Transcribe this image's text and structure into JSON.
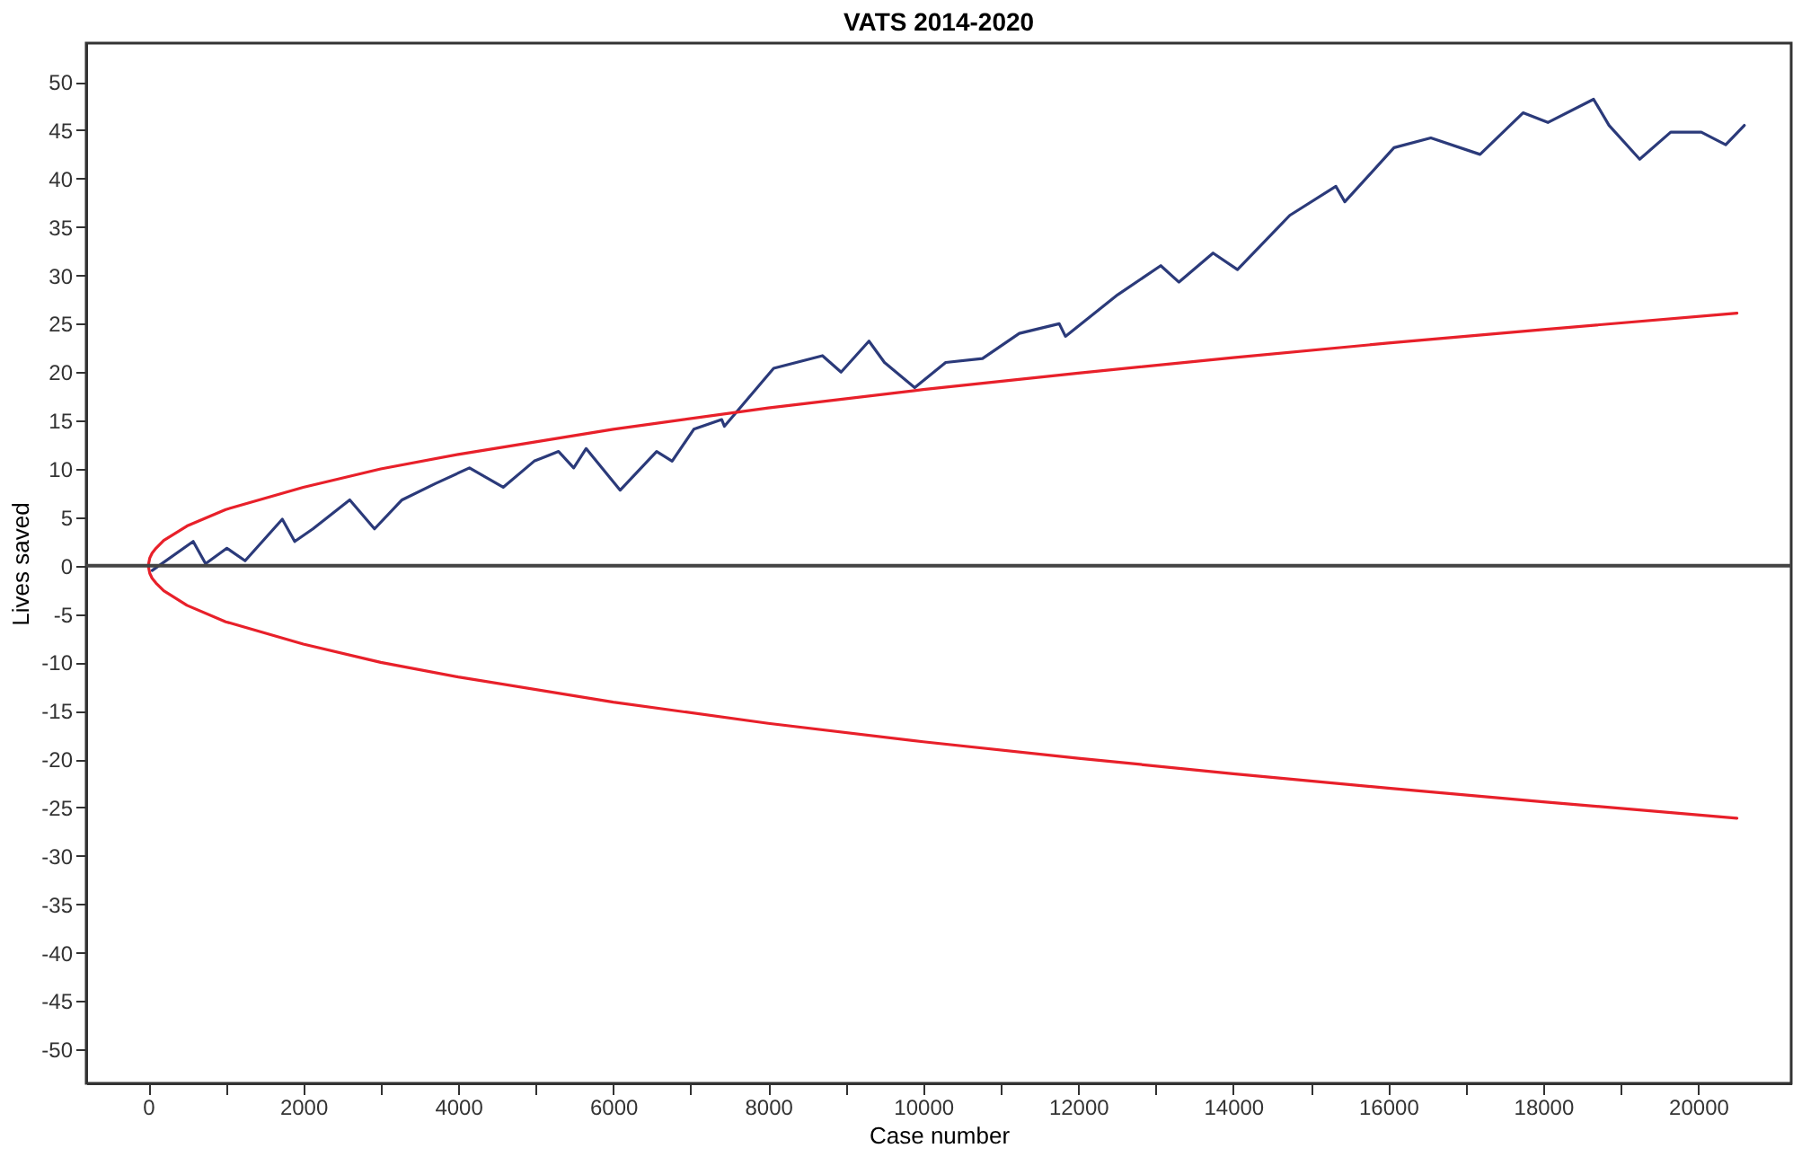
{
  "chart_data": {
    "type": "line",
    "title": "VATS 2014-2020",
    "xlabel": "Case number",
    "ylabel": "Lives saved",
    "xlim": [
      -800,
      21200
    ],
    "ylim": [
      -53.5,
      54
    ],
    "xticks": [
      0,
      {
        "value": 1000,
        "label": null
      },
      2000,
      {
        "value": 3000,
        "label": null
      },
      4000,
      {
        "value": 5000,
        "label": null
      },
      6000,
      {
        "value": 7000,
        "label": null
      },
      8000,
      {
        "value": 9000,
        "label": null
      },
      10000,
      {
        "value": 11000,
        "label": null
      },
      12000,
      {
        "value": 13000,
        "label": null
      },
      14000,
      {
        "value": 15000,
        "label": null
      },
      16000,
      {
        "value": 17000,
        "label": null
      },
      18000,
      {
        "value": 19000,
        "label": null
      },
      20000
    ],
    "yticks": [
      -50,
      -45,
      -40,
      -35,
      -30,
      -25,
      -20,
      -15,
      -10,
      -5,
      0,
      5,
      10,
      15,
      20,
      25,
      30,
      35,
      40,
      45,
      50
    ],
    "grid": false,
    "legend": false,
    "marker": "none",
    "line_style": "solid",
    "ref_lines": [
      {
        "axis": "y",
        "value": 0,
        "label": null,
        "color": "#444444"
      }
    ],
    "series": [
      {
        "color": "#2b3a7a",
        "x": [
          50,
          580,
          740,
          1015,
          1250,
          1730,
          1890,
          2125,
          2600,
          2920,
          3275,
          3710,
          4145,
          4580,
          4980,
          5295,
          5490,
          5650,
          6090,
          6560,
          6760,
          7040,
          7400,
          7435,
          8070,
          8700,
          8940,
          9300,
          9500,
          9890,
          10290,
          10765,
          11240,
          11755,
          11835,
          12510,
          13065,
          13300,
          13740,
          14055,
          14730,
          15325,
          15440,
          16075,
          16550,
          17185,
          17740,
          18060,
          18650,
          18850,
          19245,
          19645,
          20040,
          20355,
          20595
        ],
        "values": [
          -0.5,
          2.5,
          0.2,
          1.8,
          0.5,
          4.8,
          2.5,
          3.8,
          6.8,
          3.8,
          6.8,
          8.5,
          10.1,
          8.1,
          10.8,
          11.8,
          10.1,
          12.1,
          7.8,
          11.8,
          10.8,
          14.1,
          15.1,
          14.4,
          20.4,
          21.7,
          20.0,
          23.2,
          21.0,
          18.4,
          21.0,
          21.4,
          24.0,
          25.0,
          23.7,
          28.0,
          31.0,
          29.3,
          32.3,
          30.6,
          36.2,
          39.2,
          37.6,
          43.2,
          44.2,
          42.5,
          46.8,
          45.8,
          48.2,
          45.5,
          42.0,
          44.8,
          44.8,
          43.5,
          45.5
        ]
      },
      {
        "color": "#e8202a",
        "x": [
          20500,
          18000,
          16000,
          14000,
          12000,
          10000,
          8000,
          6000,
          4000,
          3000,
          2000,
          1000,
          500,
          200,
          100,
          50,
          20,
          0,
          20,
          50,
          100,
          200,
          500,
          1000,
          2000,
          3000,
          4000,
          6000,
          8000,
          10000,
          12000,
          14000,
          16000,
          18000,
          20500
        ],
        "values": [
          -26.1,
          -24.4,
          -23,
          -21.5,
          -19.9,
          -18.2,
          -16.3,
          -14.1,
          -11.5,
          -10,
          -8.1,
          -5.8,
          -4.1,
          -2.6,
          -1.8,
          -1.3,
          -0.8,
          0,
          0.8,
          1.3,
          1.8,
          2.6,
          4.1,
          5.8,
          8.1,
          10,
          11.5,
          14.1,
          16.3,
          18.2,
          19.9,
          21.5,
          23,
          24.4,
          26.1
        ]
      }
    ]
  }
}
